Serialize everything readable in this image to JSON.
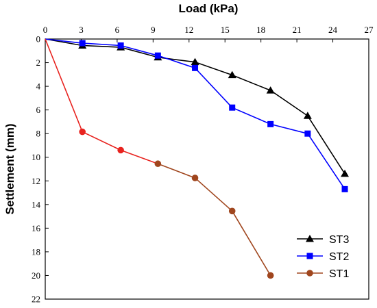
{
  "chart_data": {
    "type": "line",
    "title": "",
    "xlabel": "Load (kPa)",
    "ylabel": "Settlement (mm)",
    "x_axis_position": "top",
    "y_axis_inverted": true,
    "xlim": [
      0,
      27
    ],
    "ylim": [
      0,
      22
    ],
    "x_ticks": [
      0,
      3,
      6,
      9,
      12,
      15,
      18,
      21,
      24,
      27
    ],
    "y_ticks": [
      0,
      2,
      4,
      6,
      8,
      10,
      12,
      14,
      16,
      18,
      20,
      22
    ],
    "grid": false,
    "legend_position": "bottom-right",
    "series": [
      {
        "name": "ST3",
        "color": "#000000",
        "marker": "triangle",
        "x": [
          0,
          3.1,
          6.3,
          9.4,
          12.5,
          15.6,
          18.8,
          21.9,
          25.0
        ],
        "y": [
          0,
          0.55,
          0.7,
          1.55,
          1.95,
          3.05,
          4.35,
          6.5,
          11.4
        ]
      },
      {
        "name": "ST2",
        "color": "#0000ff",
        "marker": "square",
        "x": [
          0,
          3.1,
          6.3,
          9.4,
          12.5,
          15.6,
          18.8,
          21.9,
          25.0
        ],
        "y": [
          0,
          0.35,
          0.55,
          1.4,
          2.45,
          5.8,
          7.2,
          8.0,
          12.7
        ]
      },
      {
        "name": "ST1",
        "color": "#e8231f",
        "color_secondary": "#a0461e",
        "marker": "circle",
        "x": [
          0,
          3.1,
          6.3,
          9.4,
          12.5,
          15.6,
          18.8
        ],
        "y": [
          0,
          7.85,
          9.4,
          10.55,
          11.75,
          14.55,
          20.0
        ]
      }
    ]
  }
}
